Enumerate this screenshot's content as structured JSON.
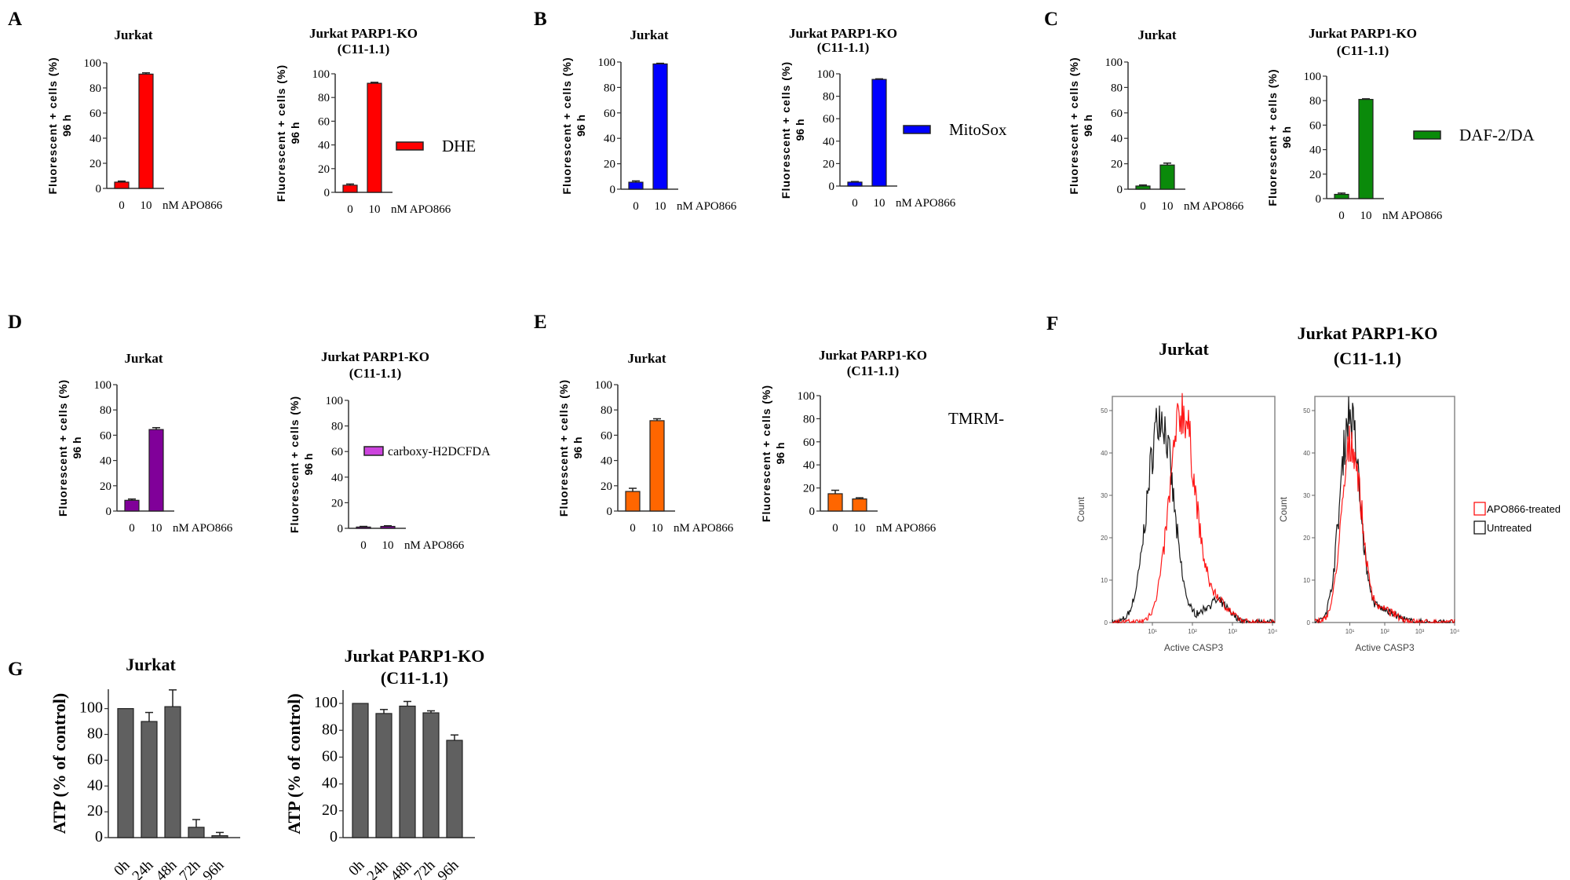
{
  "panels": [
    "A",
    "B",
    "C",
    "D",
    "E",
    "F",
    "G"
  ],
  "chart_data": [
    {
      "panel": "A",
      "type": "bar",
      "title": [
        "Jurkat"
      ],
      "ylabel": [
        "Fluorescent + cells (%)",
        "96 h"
      ],
      "categories": [
        "0",
        "10"
      ],
      "xunit": "nM APO866",
      "values": [
        5,
        91
      ],
      "errors": [
        0.8,
        1
      ],
      "color": "#ff0000",
      "ylim": [
        0,
        100
      ],
      "yticks": [
        0,
        20,
        40,
        60,
        80,
        100
      ]
    },
    {
      "panel": "A",
      "type": "bar",
      "title": [
        "Jurkat PARP1-KO",
        "(C11-1.1)"
      ],
      "ylabel": [
        "Fluorescent + cells (%)",
        "96 h"
      ],
      "categories": [
        "0",
        "10"
      ],
      "xunit": "nM APO866",
      "values": [
        6,
        92
      ],
      "errors": [
        1,
        0.8
      ],
      "color": "#ff0000",
      "ylim": [
        0,
        100
      ],
      "yticks": [
        0,
        20,
        40,
        60,
        80,
        100
      ],
      "legend": "DHE"
    },
    {
      "panel": "B",
      "type": "bar",
      "title": [
        "Jurkat"
      ],
      "ylabel": [
        "Fluorescent + cells (%)",
        "96 h"
      ],
      "categories": [
        "0",
        "10"
      ],
      "xunit": "nM APO866",
      "values": [
        5.5,
        98.5
      ],
      "errors": [
        1,
        0.5
      ],
      "color": "#0000ff",
      "ylim": [
        0,
        100
      ],
      "yticks": [
        0,
        20,
        40,
        60,
        80,
        100
      ]
    },
    {
      "panel": "B",
      "type": "bar",
      "title": [
        "Jurkat PARP1-KO",
        "(C11-1.1)"
      ],
      "ylabel": [
        "Fluorescent + cells (%)",
        "96 h"
      ],
      "categories": [
        "0",
        "10"
      ],
      "xunit": "nM APO866",
      "values": [
        3.5,
        95
      ],
      "errors": [
        0.5,
        0.5
      ],
      "color": "#0000ff",
      "ylim": [
        0,
        100
      ],
      "yticks": [
        0,
        20,
        40,
        60,
        80,
        100
      ],
      "legend": "MitoSox"
    },
    {
      "panel": "C",
      "type": "bar",
      "title": [
        "Jurkat"
      ],
      "ylabel": [
        "Fluorescent + cells (%)",
        "96 h"
      ],
      "categories": [
        "0",
        "10"
      ],
      "xunit": "nM APO866",
      "values": [
        2.5,
        19
      ],
      "errors": [
        0.8,
        1.5
      ],
      "color": "#0a8a0a",
      "ylim": [
        0,
        100
      ],
      "yticks": [
        0,
        20,
        40,
        60,
        80,
        100
      ]
    },
    {
      "panel": "C",
      "type": "bar",
      "title": [
        "Jurkat PARP1-KO",
        "(C11-1.1)"
      ],
      "ylabel": [
        "Fluorescent + cells (%)",
        "96 h"
      ],
      "categories": [
        "0",
        "10"
      ],
      "xunit": "nM APO866",
      "values": [
        3.5,
        81
      ],
      "errors": [
        1,
        0.5
      ],
      "color": "#0a8a0a",
      "ylim": [
        0,
        100
      ],
      "yticks": [
        0,
        20,
        40,
        60,
        80,
        100
      ],
      "legend": "DAF-2/DA"
    },
    {
      "panel": "D",
      "type": "bar",
      "title": [
        "Jurkat"
      ],
      "ylabel": [
        "Fluorescent + cells (%)",
        "96 h"
      ],
      "categories": [
        "0",
        "10"
      ],
      "xunit": "nM APO866",
      "values": [
        8.5,
        64.5
      ],
      "errors": [
        1,
        1.5
      ],
      "color": "#800099",
      "ylim": [
        0,
        100
      ],
      "yticks": [
        0,
        20,
        40,
        60,
        80,
        100
      ]
    },
    {
      "panel": "D",
      "type": "bar",
      "title": [
        "Jurkat PARP1-KO",
        "(C11-1.1)"
      ],
      "ylabel": [
        "Fluorescent + cells (%)",
        "96 h"
      ],
      "categories": [
        "0",
        "10"
      ],
      "xunit": "nM APO866",
      "values": [
        1,
        1.5
      ],
      "errors": [
        0.5,
        0.5
      ],
      "color": "#800099",
      "ylim": [
        0,
        100
      ],
      "yticks": [
        0,
        20,
        40,
        60,
        80,
        100
      ],
      "legend": "carboxy-H2DCFDA",
      "legend_color": "#cc44dd"
    },
    {
      "panel": "E",
      "type": "bar",
      "title": [
        "Jurkat"
      ],
      "ylabel": [
        "Fluorescent + cells (%)",
        "96 h"
      ],
      "categories": [
        "0",
        "10"
      ],
      "xunit": "nM APO866",
      "values": [
        15.5,
        71.5
      ],
      "errors": [
        2.5,
        1.5
      ],
      "color": "#ff6600",
      "ylim": [
        0,
        100
      ],
      "yticks": [
        0,
        20,
        40,
        60,
        80,
        100
      ]
    },
    {
      "panel": "E",
      "type": "bar",
      "title": [
        "Jurkat PARP1-KO",
        "(C11-1.1)"
      ],
      "ylabel": [
        "Fluorescent + cells (%)",
        "96 h"
      ],
      "categories": [
        "0",
        "10"
      ],
      "xunit": "nM APO866",
      "values": [
        15,
        10.5
      ],
      "errors": [
        3,
        1
      ],
      "color": "#ff6600",
      "ylim": [
        0,
        100
      ],
      "yticks": [
        0,
        20,
        40,
        60,
        80,
        100
      ],
      "legend": "TMRM-",
      "legend_swatch": false
    },
    {
      "panel": "G",
      "type": "bar",
      "title": [
        "Jurkat"
      ],
      "ylabel": [
        "ATP (% of control)"
      ],
      "categories": [
        "0h",
        "24h",
        "48h",
        "72h",
        "96h"
      ],
      "values": [
        100,
        90,
        101.5,
        8,
        1.5
      ],
      "errors": [
        0,
        7,
        13,
        6,
        2.5
      ],
      "color": "#606060",
      "ylim": [
        0,
        115
      ],
      "yticks": [
        0,
        20,
        40,
        60,
        80,
        100
      ]
    },
    {
      "panel": "G",
      "type": "bar",
      "title": [
        "Jurkat PARP1-KO",
        "(C11-1.1)"
      ],
      "ylabel": [
        "ATP (% of control)"
      ],
      "categories": [
        "0h",
        "24h",
        "48h",
        "72h",
        "96h"
      ],
      "values": [
        100,
        92.5,
        98,
        93,
        72.5
      ],
      "errors": [
        0,
        3,
        3.5,
        1.5,
        4
      ],
      "color": "#606060",
      "ylim": [
        0,
        110
      ],
      "yticks": [
        0,
        20,
        40,
        60,
        80,
        100
      ]
    },
    {
      "panel": "F",
      "type": "histogram",
      "title": [
        "Jurkat"
      ],
      "xlabel": "Active CASP3",
      "ylabel": "Count",
      "xscale": "log",
      "xticks": [
        "10¹",
        "10²",
        "10³",
        "10⁴"
      ],
      "yticks": [
        0,
        10,
        20,
        30,
        40,
        50
      ],
      "ylim": [
        0,
        50
      ],
      "series": [
        {
          "name": "APO866-treated",
          "color": "#ff0000",
          "peak_log10": 1.75,
          "peak_count": 50
        },
        {
          "name": "Untreated",
          "color": "#000000",
          "peak_log10": 1.2,
          "peak_count": 49
        }
      ]
    },
    {
      "panel": "F",
      "type": "histogram",
      "title": [
        "Jurkat PARP1-KO",
        "(C11-1.1)"
      ],
      "xlabel": "Active CASP3",
      "ylabel": "Count",
      "xscale": "log",
      "xticks": [
        "10¹",
        "10²",
        "10³",
        "10⁴"
      ],
      "yticks": [
        0,
        10,
        20,
        30,
        40,
        50
      ],
      "ylim": [
        0,
        50
      ],
      "series": [
        {
          "name": "APO866-treated",
          "color": "#ff0000",
          "peak_log10": 1.05,
          "peak_count": 42
        },
        {
          "name": "Untreated",
          "color": "#000000",
          "peak_log10": 1.0,
          "peak_count": 49
        }
      ]
    }
  ],
  "histogram_legend": [
    {
      "label": "APO866-treated",
      "color": "#ff0000"
    },
    {
      "label": "Untreated",
      "color": "#000000"
    }
  ]
}
